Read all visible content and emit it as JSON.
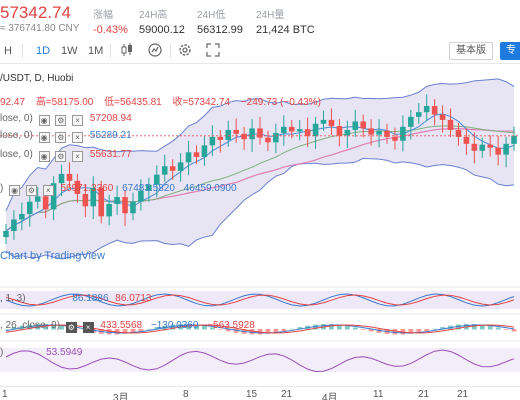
{
  "ticker": {
    "last_price": "57342.74",
    "cny_label": "≈ 376741.80 CNY",
    "change": {
      "label": "涨幅",
      "value": "-0.43%"
    },
    "high": {
      "label": "24H高",
      "value": "59000.12"
    },
    "low": {
      "label": "24H低",
      "value": "56312.99"
    },
    "volume": {
      "label": "24H量",
      "value": "21,424 BTC"
    }
  },
  "toolbar": {
    "h_label": "H",
    "d_label": "1D",
    "w_label": "1W",
    "m_label": "1M",
    "basic_label": "基本版",
    "right_pill": "专"
  },
  "legend": {
    "symbol": "/USDT, D, Huobi",
    "open": "92.47",
    "high": "高=58175.00",
    "low": "低=56435.81",
    "close": "收=57342.74",
    "change": "−249.73 (−0.43%)",
    "ma1": "lose, 0)",
    "ma1_val": "57208.94",
    "ma2": "lose, 0)",
    "ma2_val": "55289.21",
    "ma3": "lose, 0)",
    "ma3_val": "55631.77",
    "boll": ")",
    "boll_vals": [
      "56971.3360",
      "67483.5820",
      "46459.0900"
    ]
  },
  "watermark": "Chart by TradingView",
  "indicators": {
    "kdj": {
      "params": ", 1, 3)",
      "values": [
        "86.1886",
        "86.0713"
      ]
    },
    "macd": {
      "params": ", 26, close, 9)",
      "values": [
        "433.5568",
        "−130.0360",
        "−563.5928"
      ]
    },
    "rsi": {
      "params": ")",
      "value": "53.5949"
    }
  },
  "xaxis": {
    "labels": [
      "1",
      "3月",
      "8",
      "15",
      "21",
      "4月",
      "11",
      "21",
      "21"
    ]
  },
  "colors": {
    "up": "#26a69a",
    "down": "#ef5350",
    "boll_band": "#b9b2e0",
    "accent": "#1f7ae0"
  },
  "chart_data": {
    "type": "candlestick",
    "series_close": [
      45000,
      46500,
      47200,
      48800,
      49500,
      47800,
      51200,
      52400,
      51500,
      49800,
      48200,
      50600,
      46900,
      48500,
      49400,
      47300,
      48800,
      50200,
      51000,
      52300,
      53400,
      52800,
      53900,
      55200,
      54600,
      56100,
      57200,
      56800,
      58100,
      57600,
      56900,
      58300,
      57100,
      56500,
      57700,
      58500,
      57900,
      58200,
      57300,
      58900,
      59400,
      58600,
      57400,
      58100,
      59200,
      58300,
      57500,
      58000,
      57200,
      56700,
      58500,
      59800,
      60400,
      61200,
      60100,
      59400,
      58100,
      57200,
      56300,
      55400,
      56200,
      55800,
      54900,
      56300,
      57342
    ]
  }
}
